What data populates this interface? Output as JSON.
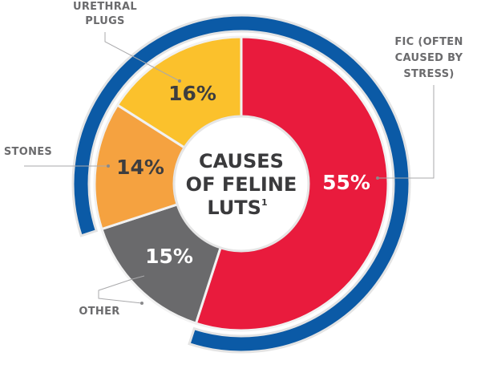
{
  "chart_data": {
    "type": "pie",
    "title_lines": [
      "CAUSES",
      "OF FELINE",
      "LUTS"
    ],
    "title_superscript": "1",
    "slices": [
      {
        "label": "FIC (OFTEN CAUSED BY STRESS)",
        "label_lines": [
          "FIC (OFTEN",
          "CAUSED BY",
          "STRESS)"
        ],
        "value": 55,
        "value_label": "55%",
        "color": "#e91b3d"
      },
      {
        "label": "OTHER",
        "label_lines": [
          "OTHER"
        ],
        "value": 15,
        "value_label": "15%",
        "color": "#6a6a6c"
      },
      {
        "label": "STONES",
        "label_lines": [
          "STONES"
        ],
        "value": 14,
        "value_label": "14%",
        "color": "#f5a240"
      },
      {
        "label": "URETHRAL PLUGS",
        "label_lines": [
          "URETHRAL",
          "PLUGS"
        ],
        "value": 16,
        "value_label": "16%",
        "color": "#fbc12c"
      }
    ],
    "donut": true,
    "outer_ring_color": "#0b5aa6",
    "legend": "none"
  }
}
